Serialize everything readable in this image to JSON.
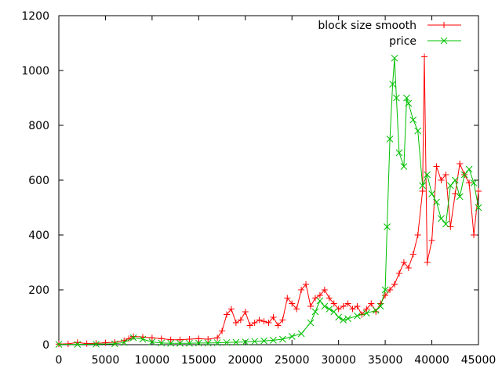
{
  "chart_data": {
    "type": "line",
    "xlim": [
      0,
      45000
    ],
    "ylim": [
      0,
      1200
    ],
    "x_ticks": [
      0,
      5000,
      10000,
      15000,
      20000,
      25000,
      30000,
      35000,
      40000,
      45000
    ],
    "y_ticks": [
      0,
      200,
      400,
      600,
      800,
      1000,
      1200
    ],
    "x_tick_labels": [
      "0",
      "5000",
      "10000",
      "15000",
      "20000",
      "25000",
      "30000",
      "35000",
      "40000",
      "45000"
    ],
    "y_tick_labels": [
      "0",
      "200",
      "400",
      "600",
      "800",
      "1000",
      "1200"
    ],
    "grid": false,
    "legend_position": "top-right",
    "series": [
      {
        "name": "block size smooth",
        "color": "#ff0000",
        "marker": "plus",
        "x": [
          0,
          1000,
          2000,
          3000,
          4000,
          5000,
          6000,
          7000,
          7500,
          8000,
          9000,
          10000,
          11000,
          12000,
          13000,
          14000,
          15000,
          16000,
          17000,
          17500,
          18000,
          18500,
          19000,
          19500,
          20000,
          20500,
          21000,
          21500,
          22000,
          22500,
          23000,
          23500,
          24000,
          24500,
          25000,
          25500,
          26000,
          26500,
          27000,
          27500,
          28000,
          28500,
          29000,
          29500,
          30000,
          30500,
          31000,
          31500,
          32000,
          32500,
          33000,
          33500,
          34000,
          34500,
          35000,
          35500,
          36000,
          36500,
          37000,
          37500,
          38000,
          38500,
          39000,
          39200,
          39500,
          40000,
          40500,
          41000,
          41500,
          42000,
          42500,
          43000,
          43500,
          44000,
          44500,
          45000
        ],
        "y": [
          2,
          3,
          8,
          4,
          5,
          7,
          9,
          15,
          22,
          30,
          28,
          25,
          22,
          18,
          18,
          20,
          22,
          20,
          25,
          50,
          110,
          130,
          80,
          90,
          120,
          70,
          80,
          90,
          85,
          80,
          100,
          70,
          90,
          170,
          150,
          130,
          200,
          220,
          140,
          170,
          180,
          200,
          170,
          150,
          130,
          140,
          150,
          130,
          140,
          110,
          130,
          150,
          120,
          150,
          180,
          200,
          220,
          260,
          300,
          280,
          330,
          400,
          560,
          1050,
          300,
          380,
          650,
          600,
          620,
          430,
          550,
          660,
          620,
          590,
          400,
          560
        ]
      },
      {
        "name": "price",
        "color": "#00c000",
        "marker": "cross",
        "x": [
          0,
          2000,
          4000,
          6000,
          7000,
          8000,
          9000,
          10000,
          11000,
          12000,
          13000,
          14000,
          15000,
          16000,
          17000,
          18000,
          19000,
          20000,
          21000,
          22000,
          23000,
          24000,
          25000,
          26000,
          27000,
          27500,
          28000,
          28500,
          29000,
          29500,
          30000,
          30500,
          31000,
          32000,
          33000,
          34000,
          34500,
          35000,
          35200,
          35500,
          35800,
          36000,
          36200,
          36500,
          37000,
          37300,
          37500,
          38000,
          38500,
          39000,
          39500,
          40000,
          40500,
          41000,
          41500,
          42000,
          42500,
          43000,
          43500,
          44000,
          44500,
          45000
        ],
        "y": [
          1,
          1,
          2,
          3,
          8,
          25,
          20,
          10,
          6,
          5,
          5,
          5,
          6,
          6,
          7,
          8,
          9,
          10,
          12,
          14,
          16,
          20,
          30,
          40,
          80,
          120,
          160,
          140,
          130,
          120,
          100,
          90,
          95,
          105,
          115,
          125,
          140,
          200,
          430,
          750,
          950,
          1045,
          900,
          700,
          650,
          900,
          880,
          820,
          780,
          580,
          620,
          550,
          520,
          460,
          440,
          580,
          600,
          540,
          620,
          640,
          590,
          500
        ]
      }
    ]
  }
}
